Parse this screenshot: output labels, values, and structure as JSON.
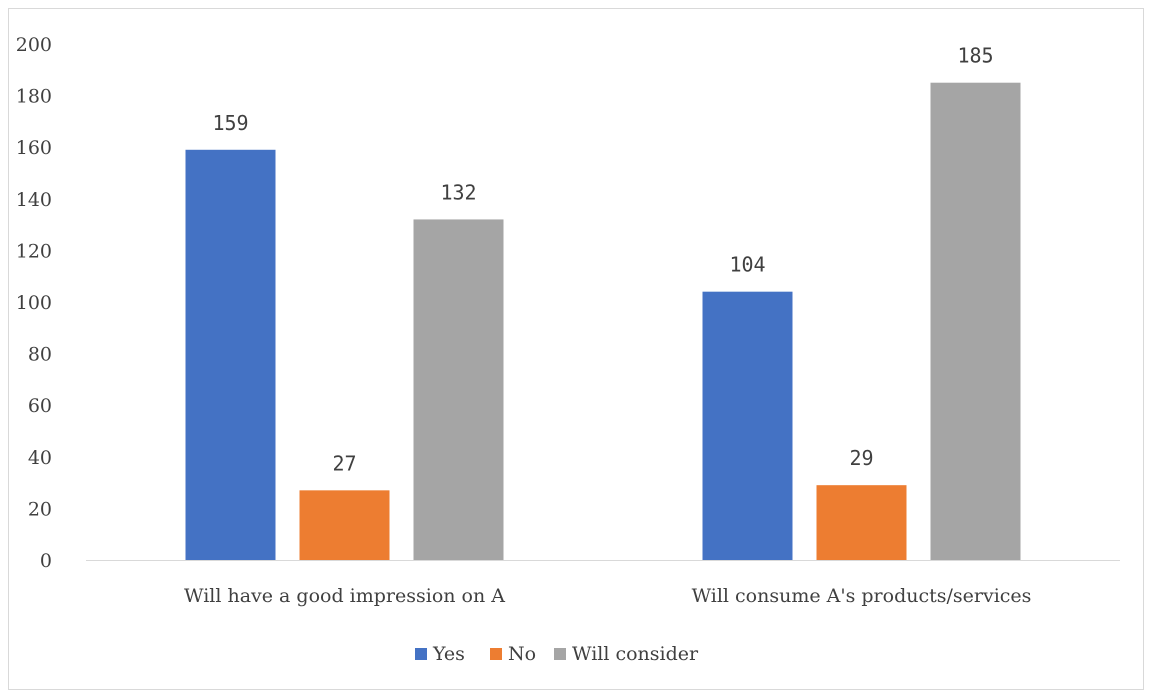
{
  "chart_data": {
    "type": "bar",
    "categories": [
      "Will have a good impression on A",
      "Will consume A's products/services"
    ],
    "series": [
      {
        "name": "Yes",
        "values": [
          159,
          104
        ],
        "color": "#4472c4"
      },
      {
        "name": "No",
        "values": [
          27,
          29
        ],
        "color": "#ed7d31"
      },
      {
        "name": "Will consider",
        "values": [
          132,
          185
        ],
        "color": "#a5a5a5"
      }
    ],
    "ylim": [
      0,
      200
    ],
    "yticks": [
      0,
      20,
      40,
      60,
      80,
      100,
      120,
      140,
      160,
      180,
      200
    ],
    "grid": false,
    "legend": "bottom",
    "title": "",
    "xlabel": "",
    "ylabel": ""
  }
}
